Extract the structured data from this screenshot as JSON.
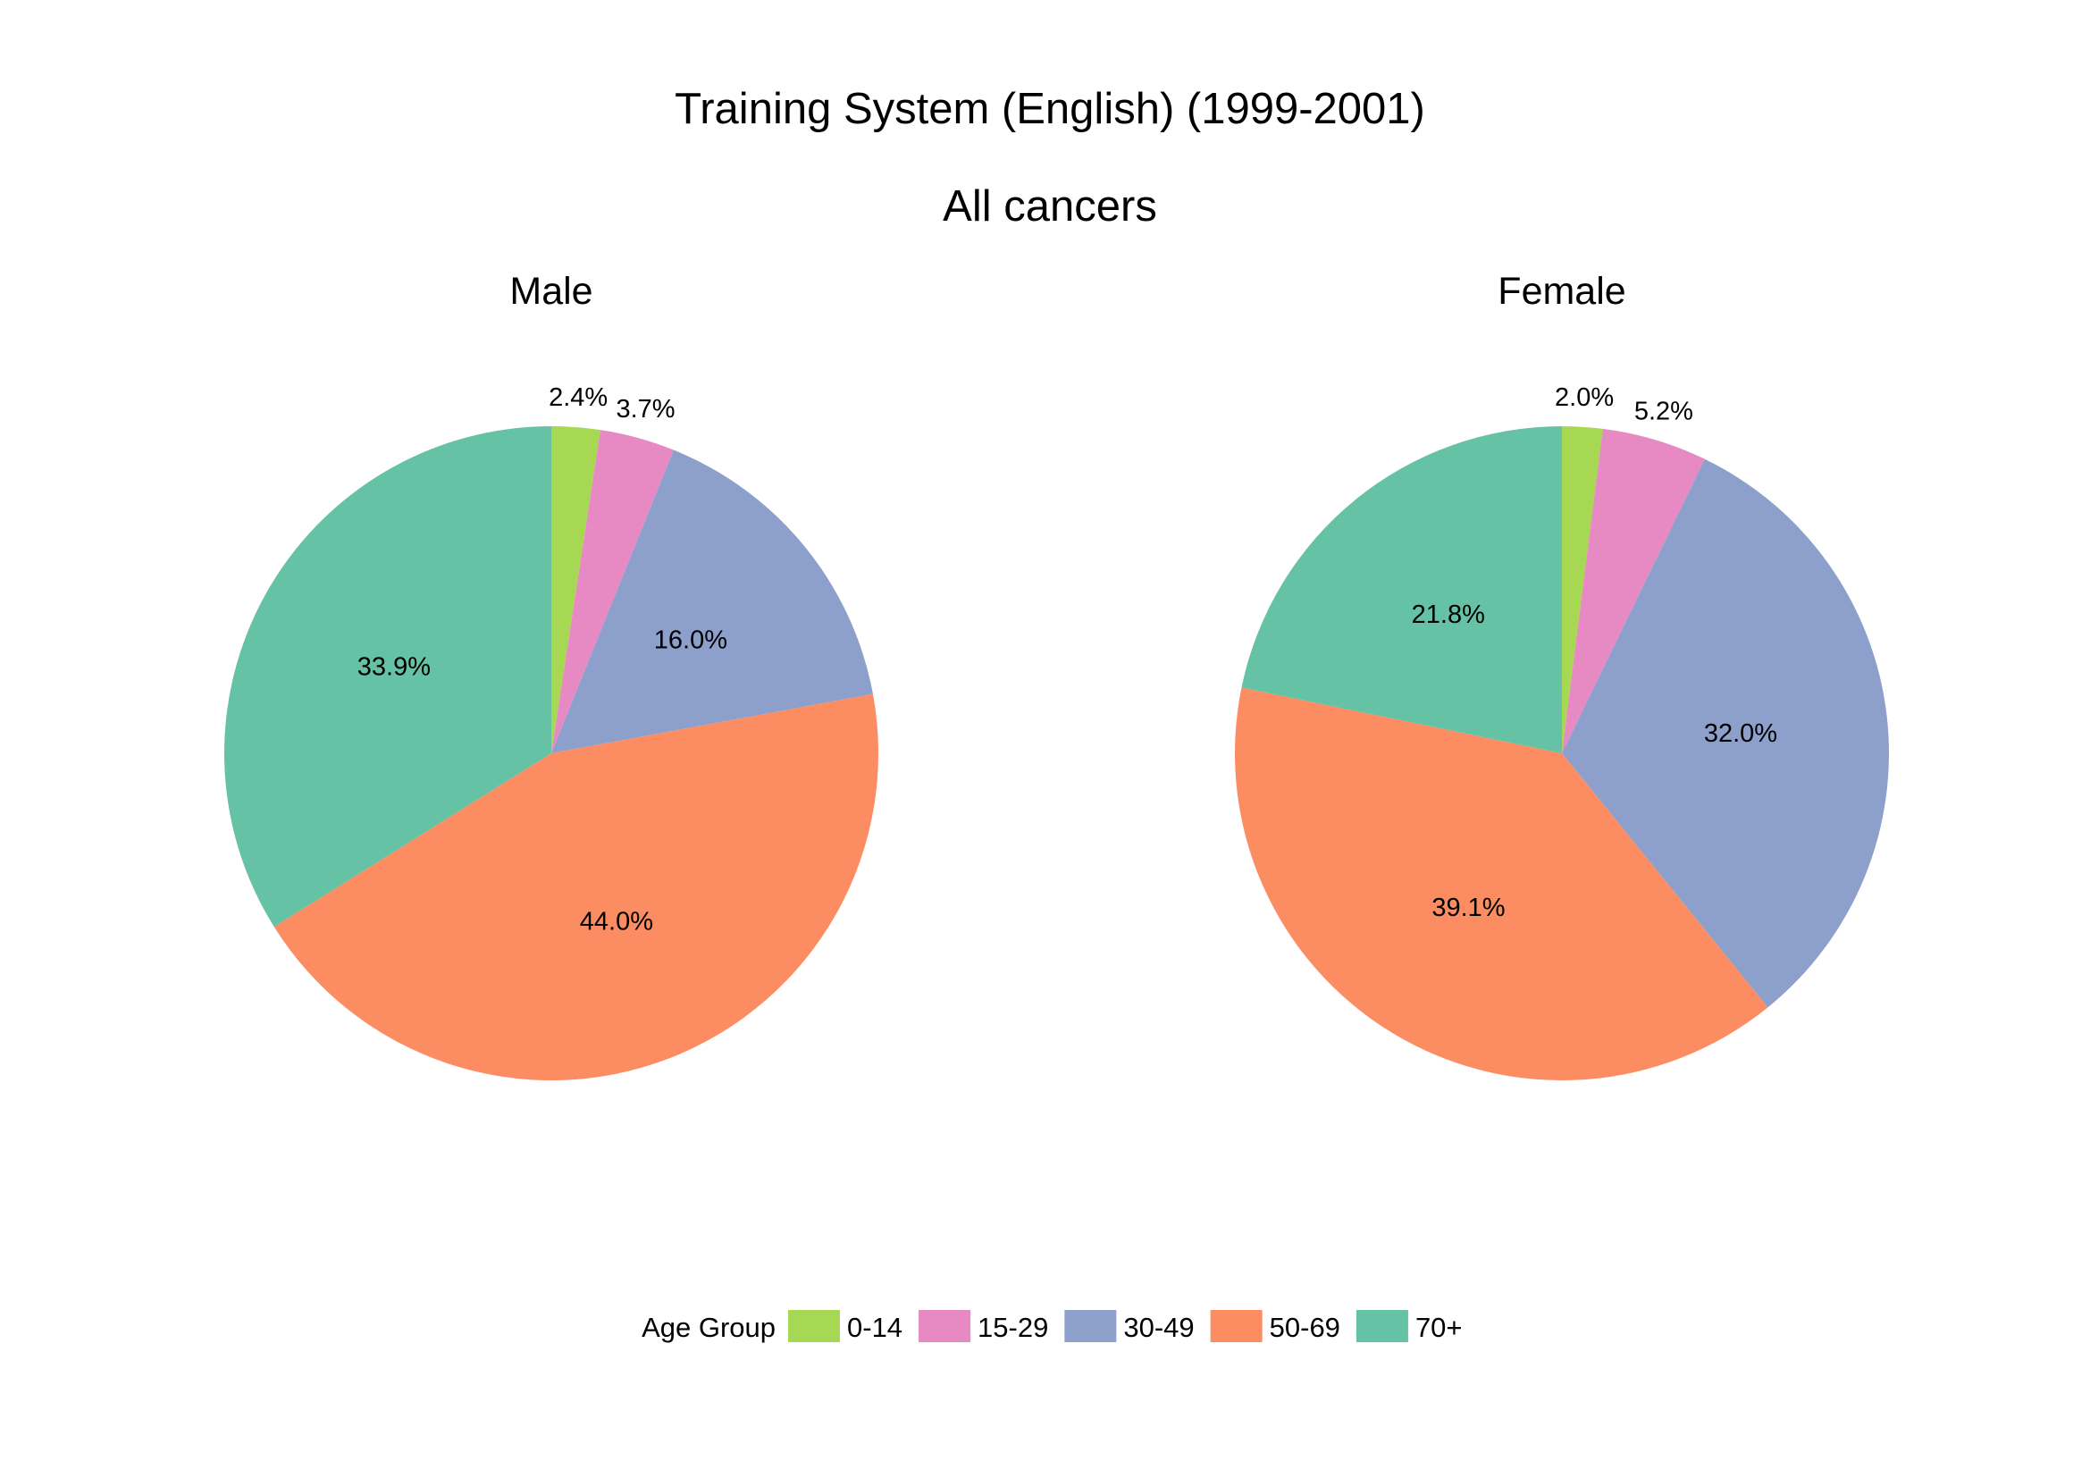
{
  "chart_data": [
    {
      "type": "pie",
      "title": "Training System (English) (1999-2001)",
      "subtitle": "All cancers",
      "panel": "Male",
      "categories": [
        "0-14",
        "15-29",
        "30-49",
        "50-69",
        "70+"
      ],
      "values": [
        2.4,
        3.7,
        16.0,
        44.0,
        33.9
      ],
      "labels": [
        "2.4%",
        "3.7%",
        "16.0%",
        "44.0%",
        "33.9%"
      ],
      "start": "12 o'clock",
      "direction": "clockwise"
    },
    {
      "type": "pie",
      "title": "Training System (English) (1999-2001)",
      "subtitle": "All cancers",
      "panel": "Female",
      "categories": [
        "0-14",
        "15-29",
        "30-49",
        "50-69",
        "70+"
      ],
      "values": [
        2.0,
        5.2,
        32.0,
        39.1,
        21.8
      ],
      "labels": [
        "2.0%",
        "5.2%",
        "32.0%",
        "39.1%",
        "21.8%"
      ],
      "start": "12 o'clock",
      "direction": "clockwise"
    }
  ],
  "legend": {
    "title": "Age Group",
    "placement": "bottom",
    "items": [
      {
        "label": "0-14",
        "color": "#a6d854"
      },
      {
        "label": "15-29",
        "color": "#e78ac3"
      },
      {
        "label": "30-49",
        "color": "#8da0cb"
      },
      {
        "label": "50-69",
        "color": "#fc8d62"
      },
      {
        "label": "70+",
        "color": "#66c2a5"
      }
    ]
  }
}
